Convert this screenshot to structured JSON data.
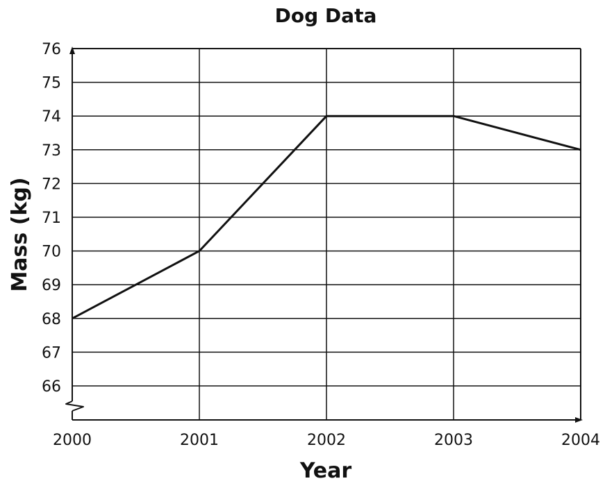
{
  "chart_data": {
    "type": "line",
    "title": "Dog Data",
    "xlabel": "Year",
    "ylabel": "Mass (kg)",
    "x": [
      2000,
      2001,
      2002,
      2003,
      2004
    ],
    "x_ticks": [
      "2000",
      "2001",
      "2002",
      "2003",
      "2004"
    ],
    "y_ticks": [
      "66",
      "67",
      "68",
      "69",
      "70",
      "71",
      "72",
      "73",
      "74",
      "75",
      "76"
    ],
    "series": [
      {
        "values": [
          68,
          70,
          74,
          74,
          73
        ]
      }
    ],
    "xlim": [
      2000,
      2004
    ],
    "ylim": [
      65,
      76
    ],
    "y_axis_break": true,
    "grid": true,
    "line_color": "#111111"
  }
}
